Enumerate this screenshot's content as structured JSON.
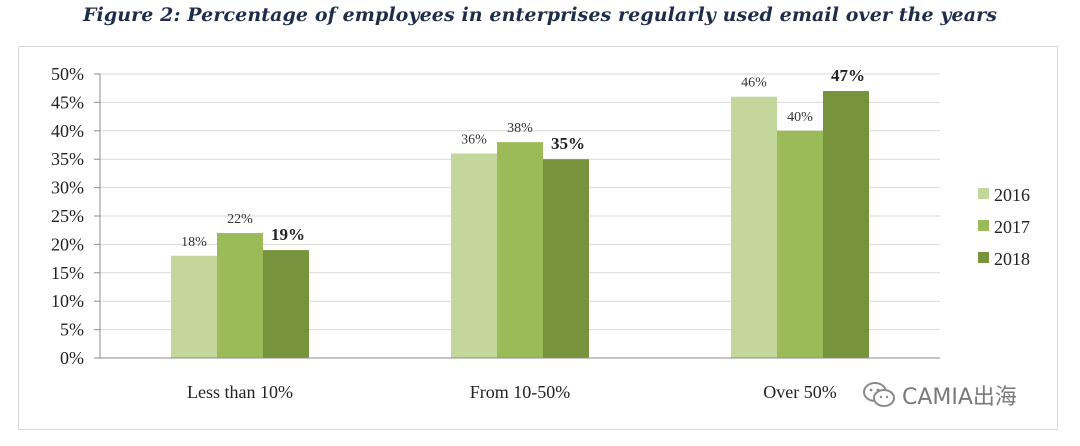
{
  "title": "Figure 2: Percentage of employees in enterprises regularly used email over the years",
  "watermark": "CAMIA出海",
  "chart_data": {
    "type": "bar",
    "categories": [
      "Less than 10%",
      "From 10-50%",
      "Over 50%"
    ],
    "series": [
      {
        "name": "2016",
        "color": "#c3d69b",
        "values": [
          18,
          36,
          46
        ],
        "labels": [
          "18%",
          "36%",
          "46%"
        ]
      },
      {
        "name": "2017",
        "color": "#9bbb59",
        "values": [
          22,
          38,
          40
        ],
        "labels": [
          "22%",
          "38%",
          "40%"
        ]
      },
      {
        "name": "2018",
        "color": "#77933c",
        "values": [
          19,
          35,
          47
        ],
        "labels": [
          "19%",
          "35%",
          "47%"
        ],
        "label_bold": true
      }
    ],
    "ylim": [
      0,
      50
    ],
    "yticks": [
      "0%",
      "5%",
      "10%",
      "15%",
      "20%",
      "25%",
      "30%",
      "35%",
      "40%",
      "45%",
      "50%"
    ],
    "grid": true,
    "legend": "right"
  }
}
